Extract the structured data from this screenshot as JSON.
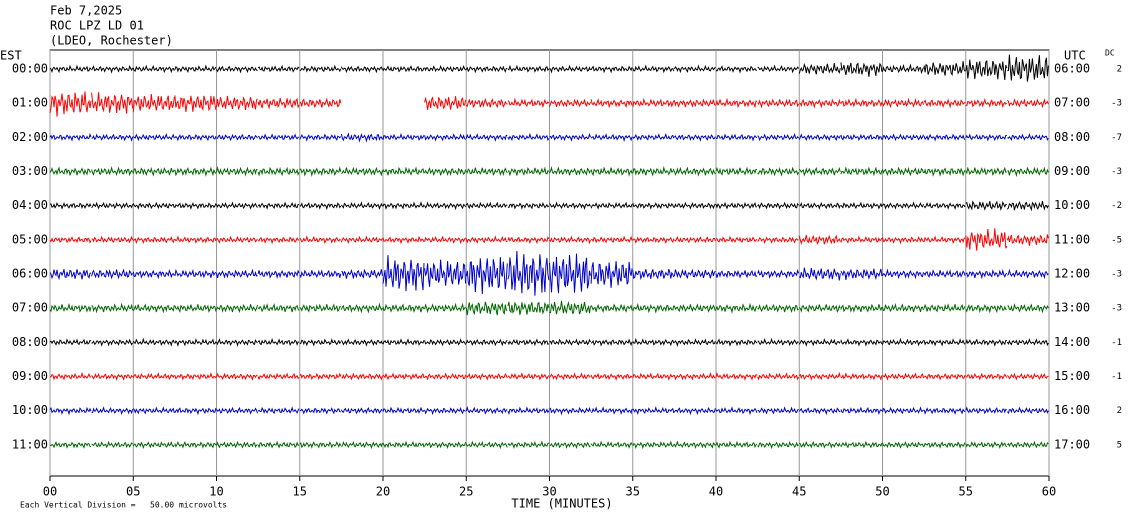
{
  "chart_data": {
    "type": "helicorder",
    "title_lines": [
      "Feb 7,2025",
      "ROC LPZ LD 01",
      "(LDEO, Rochester)"
    ],
    "left_axis_label": "EST",
    "right_axis_label": "UTC",
    "dc_label": "DC",
    "xlabel": "TIME (MINUTES)",
    "footer": "Each Vertical Division =   50.00 microvolts",
    "xlim": [
      0,
      60
    ],
    "xticks": [
      {
        "value": 0,
        "label": "00"
      },
      {
        "value": 5,
        "label": "05"
      },
      10,
      15,
      20,
      25,
      30,
      35,
      40,
      45,
      50,
      55,
      60
    ],
    "grid": true,
    "segment_minutes": 2.5,
    "rows": [
      {
        "est": "00:00",
        "utc": "06:00",
        "dc": 2,
        "color": "#000000",
        "amplitude": [
          3,
          3,
          3,
          3,
          3,
          3,
          3,
          3,
          3,
          3,
          3,
          3,
          3,
          3,
          3,
          3,
          3,
          3,
          6,
          8,
          4,
          8,
          12,
          16
        ]
      },
      {
        "est": "01:00",
        "utc": "07:00",
        "dc": -3,
        "color": "#ff0000",
        "amplitude": [
          14,
          12,
          10,
          10,
          8,
          6,
          5,
          null,
          null,
          8,
          5,
          4,
          4,
          4,
          4,
          4,
          4,
          4,
          4,
          4,
          4,
          4,
          4,
          4
        ]
      },
      {
        "est": "02:00",
        "utc": "08:00",
        "dc": -7,
        "color": "#0000cc",
        "amplitude": [
          3,
          3,
          3,
          3,
          3,
          3,
          3,
          4,
          3,
          3,
          3,
          3,
          3,
          3,
          3,
          3,
          3,
          3,
          3,
          3,
          3,
          3,
          3,
          3
        ]
      },
      {
        "est": "03:00",
        "utc": "09:00",
        "dc": -3,
        "color": "#006600",
        "amplitude": [
          4,
          4,
          4,
          4,
          4,
          4,
          4,
          4,
          4,
          4,
          4,
          4,
          4,
          4,
          4,
          4,
          4,
          4,
          4,
          4,
          4,
          4,
          4,
          4
        ]
      },
      {
        "est": "04:00",
        "utc": "10:00",
        "dc": -2,
        "color": "#000000",
        "amplitude": [
          3,
          3,
          3,
          3,
          3,
          3,
          3,
          3,
          3,
          3,
          3,
          3,
          3,
          3,
          3,
          3,
          3,
          3,
          3,
          3,
          3,
          3,
          5,
          5
        ]
      },
      {
        "est": "05:00",
        "utc": "11:00",
        "dc": -5,
        "color": "#ff0000",
        "amplitude": [
          3,
          3,
          3,
          3,
          3,
          3,
          3,
          3,
          3,
          3,
          3,
          3,
          3,
          3,
          3,
          3,
          3,
          3,
          5,
          3,
          3,
          3,
          12,
          6
        ]
      },
      {
        "est": "06:00",
        "utc": "12:00",
        "dc": -3,
        "color": "#0000cc",
        "amplitude": [
          6,
          5,
          4,
          4,
          4,
          4,
          4,
          5,
          20,
          16,
          22,
          26,
          24,
          16,
          6,
          5,
          4,
          4,
          7,
          6,
          4,
          4,
          4,
          4
        ]
      },
      {
        "est": "07:00",
        "utc": "13:00",
        "dc": -3,
        "color": "#006600",
        "amplitude": [
          4,
          4,
          4,
          4,
          4,
          4,
          4,
          4,
          4,
          4,
          8,
          8,
          8,
          4,
          4,
          4,
          4,
          4,
          4,
          4,
          4,
          4,
          4,
          4
        ]
      },
      {
        "est": "08:00",
        "utc": "14:00",
        "dc": -1,
        "color": "#000000",
        "amplitude": [
          3,
          3,
          3,
          3,
          3,
          3,
          3,
          3,
          3,
          3,
          3,
          3,
          3,
          3,
          3,
          3,
          3,
          3,
          3,
          3,
          3,
          3,
          3,
          3
        ]
      },
      {
        "est": "09:00",
        "utc": "15:00",
        "dc": -1,
        "color": "#ff0000",
        "amplitude": [
          3,
          3,
          3,
          3,
          3,
          3,
          3,
          3,
          3,
          3,
          3,
          3,
          3,
          3,
          3,
          3,
          3,
          3,
          3,
          3,
          3,
          3,
          3,
          3
        ]
      },
      {
        "est": "10:00",
        "utc": "16:00",
        "dc": 2,
        "color": "#0000cc",
        "amplitude": [
          3,
          3,
          3,
          3,
          3,
          3,
          3,
          3,
          3,
          3,
          3,
          3,
          3,
          3,
          3,
          3,
          3,
          3,
          3,
          3,
          3,
          3,
          3,
          3
        ]
      },
      {
        "est": "11:00",
        "utc": "17:00",
        "dc": 5,
        "color": "#006600",
        "amplitude": [
          3,
          3,
          3,
          3,
          3,
          3,
          3,
          3,
          3,
          3,
          3,
          3,
          3,
          3,
          3,
          3,
          3,
          3,
          3,
          3,
          3,
          3,
          3,
          3
        ]
      }
    ]
  }
}
